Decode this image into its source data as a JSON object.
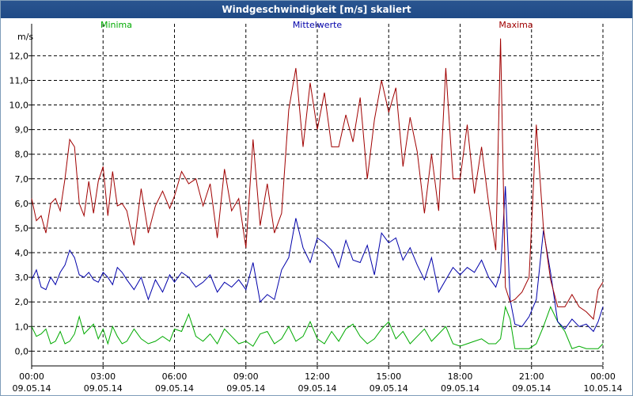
{
  "window": {
    "title": "Windgeschwindigkeit [m/s] skaliert"
  },
  "colors": {
    "minima": "#00aa00",
    "mittelwerte": "#0000aa",
    "maxima": "#a00000",
    "grid": "#000000",
    "title_bg": "#2a5590"
  },
  "chart_data": {
    "type": "line",
    "title": "Windgeschwindigkeit [m/s] skaliert",
    "ylabel": "m/s",
    "xlabel": "",
    "ylim": [
      -0.6,
      13.3
    ],
    "xlim": [
      0,
      24
    ],
    "yticks": [
      0.0,
      1.0,
      2.0,
      3.0,
      4.0,
      5.0,
      6.0,
      7.0,
      8.0,
      9.0,
      10.0,
      11.0,
      12.0
    ],
    "ytick_labels": [
      "0,0",
      "1,0",
      "2,0",
      "3,0",
      "4,0",
      "5,0",
      "6,0",
      "7,0",
      "8,0",
      "9,0",
      "10,0",
      "11,0",
      "12,0"
    ],
    "xticks": [
      {
        "hour": 0,
        "time": "00:00",
        "date": "09.05.14"
      },
      {
        "hour": 3,
        "time": "03:00",
        "date": "09.05.14"
      },
      {
        "hour": 6,
        "time": "06:00",
        "date": "09.05.14"
      },
      {
        "hour": 9,
        "time": "09:00",
        "date": "09.05.14"
      },
      {
        "hour": 12,
        "time": "12:00",
        "date": "09.05.14"
      },
      {
        "hour": 15,
        "time": "15:00",
        "date": "09.05.14"
      },
      {
        "hour": 18,
        "time": "18:00",
        "date": "09.05.14"
      },
      {
        "hour": 21,
        "time": "21:00",
        "date": "09.05.14"
      },
      {
        "hour": 24,
        "time": "00:00",
        "date": "10.05.14"
      }
    ],
    "grid": true,
    "legend_position": "top",
    "series": [
      {
        "name": "Minima",
        "key": "minima",
        "x": [
          0.0,
          0.2,
          0.4,
          0.6,
          0.8,
          1.0,
          1.2,
          1.4,
          1.6,
          1.8,
          2.0,
          2.2,
          2.4,
          2.6,
          2.8,
          3.0,
          3.2,
          3.4,
          3.6,
          3.8,
          4.0,
          4.3,
          4.6,
          4.9,
          5.2,
          5.5,
          5.8,
          6.0,
          6.3,
          6.6,
          6.9,
          7.2,
          7.5,
          7.8,
          8.1,
          8.4,
          8.7,
          9.0,
          9.3,
          9.6,
          9.9,
          10.2,
          10.5,
          10.8,
          11.1,
          11.4,
          11.7,
          12.0,
          12.3,
          12.6,
          12.9,
          13.2,
          13.5,
          13.8,
          14.1,
          14.4,
          14.7,
          15.0,
          15.3,
          15.6,
          15.9,
          16.2,
          16.5,
          16.8,
          17.1,
          17.4,
          17.7,
          18.0,
          18.3,
          18.6,
          18.9,
          19.2,
          19.5,
          19.7,
          19.9,
          20.1,
          20.3,
          20.6,
          20.9,
          21.2,
          21.5,
          21.8,
          22.1,
          22.4,
          22.7,
          23.0,
          23.3,
          23.6,
          23.8,
          24.0
        ],
        "y": [
          1.0,
          0.6,
          0.7,
          0.9,
          0.3,
          0.4,
          0.8,
          0.3,
          0.4,
          0.7,
          1.4,
          0.7,
          0.9,
          1.1,
          0.5,
          0.9,
          0.3,
          1.0,
          0.6,
          0.3,
          0.4,
          0.9,
          0.5,
          0.3,
          0.4,
          0.6,
          0.4,
          0.9,
          0.8,
          1.5,
          0.6,
          0.4,
          0.7,
          0.3,
          0.9,
          0.6,
          0.3,
          0.4,
          0.2,
          0.7,
          0.8,
          0.3,
          0.5,
          1.0,
          0.4,
          0.6,
          1.2,
          0.5,
          0.3,
          0.8,
          0.4,
          0.9,
          1.1,
          0.6,
          0.3,
          0.5,
          0.9,
          1.2,
          0.5,
          0.8,
          0.3,
          0.6,
          0.9,
          0.4,
          0.7,
          1.0,
          0.3,
          0.2,
          0.3,
          0.4,
          0.5,
          0.3,
          0.3,
          0.5,
          1.8,
          1.3,
          0.1,
          0.1,
          0.1,
          0.3,
          1.0,
          1.8,
          1.2,
          0.8,
          0.1,
          0.2,
          0.1,
          0.1,
          0.1,
          0.3
        ]
      },
      {
        "name": "Mittelwerte",
        "key": "mittelwerte",
        "x": [
          0.0,
          0.2,
          0.4,
          0.6,
          0.8,
          1.0,
          1.2,
          1.4,
          1.6,
          1.8,
          2.0,
          2.2,
          2.4,
          2.6,
          2.8,
          3.0,
          3.2,
          3.4,
          3.6,
          3.8,
          4.0,
          4.3,
          4.6,
          4.9,
          5.2,
          5.5,
          5.8,
          6.0,
          6.3,
          6.6,
          6.9,
          7.2,
          7.5,
          7.8,
          8.1,
          8.4,
          8.7,
          9.0,
          9.3,
          9.6,
          9.9,
          10.2,
          10.5,
          10.8,
          11.1,
          11.4,
          11.7,
          12.0,
          12.3,
          12.6,
          12.9,
          13.2,
          13.5,
          13.8,
          14.1,
          14.4,
          14.7,
          15.0,
          15.3,
          15.6,
          15.9,
          16.2,
          16.5,
          16.8,
          17.1,
          17.4,
          17.7,
          18.0,
          18.3,
          18.6,
          18.9,
          19.2,
          19.5,
          19.7,
          19.9,
          20.1,
          20.3,
          20.6,
          20.9,
          21.2,
          21.5,
          21.8,
          22.1,
          22.4,
          22.7,
          23.0,
          23.3,
          23.6,
          23.8,
          24.0
        ],
        "y": [
          2.9,
          3.3,
          2.6,
          2.5,
          3.0,
          2.7,
          3.2,
          3.5,
          4.1,
          3.8,
          3.1,
          3.0,
          3.2,
          2.9,
          2.8,
          3.2,
          3.0,
          2.7,
          3.4,
          3.2,
          2.9,
          2.5,
          3.0,
          2.1,
          2.9,
          2.4,
          3.1,
          2.8,
          3.2,
          3.0,
          2.6,
          2.8,
          3.1,
          2.4,
          2.8,
          2.6,
          2.9,
          2.5,
          3.6,
          2.0,
          2.3,
          2.1,
          3.3,
          3.8,
          5.4,
          4.2,
          3.6,
          4.6,
          4.4,
          4.1,
          3.4,
          4.5,
          3.7,
          3.6,
          4.3,
          3.1,
          4.8,
          4.4,
          4.6,
          3.7,
          4.2,
          3.5,
          2.9,
          3.8,
          2.4,
          2.9,
          3.4,
          3.1,
          3.4,
          3.2,
          3.7,
          3.0,
          2.6,
          3.2,
          6.7,
          2.1,
          1.1,
          1.0,
          1.4,
          2.1,
          4.9,
          3.2,
          1.2,
          0.9,
          1.3,
          1.0,
          1.1,
          0.8,
          1.2,
          1.8
        ]
      },
      {
        "name": "Maxima",
        "key": "maxima",
        "x": [
          0.0,
          0.2,
          0.4,
          0.6,
          0.8,
          1.0,
          1.2,
          1.4,
          1.6,
          1.8,
          2.0,
          2.2,
          2.4,
          2.6,
          2.8,
          3.0,
          3.2,
          3.4,
          3.6,
          3.8,
          4.0,
          4.3,
          4.6,
          4.9,
          5.2,
          5.5,
          5.8,
          6.0,
          6.3,
          6.6,
          6.9,
          7.2,
          7.5,
          7.8,
          8.1,
          8.4,
          8.7,
          9.0,
          9.3,
          9.6,
          9.9,
          10.2,
          10.5,
          10.8,
          11.1,
          11.4,
          11.7,
          12.0,
          12.3,
          12.6,
          12.9,
          13.2,
          13.5,
          13.8,
          14.1,
          14.4,
          14.7,
          15.0,
          15.3,
          15.6,
          15.9,
          16.2,
          16.5,
          16.8,
          17.1,
          17.4,
          17.7,
          18.0,
          18.3,
          18.6,
          18.9,
          19.2,
          19.5,
          19.7,
          19.9,
          20.1,
          20.3,
          20.6,
          20.9,
          21.2,
          21.5,
          21.8,
          22.1,
          22.4,
          22.7,
          23.0,
          23.3,
          23.6,
          23.8,
          24.0
        ],
        "y": [
          6.2,
          5.3,
          5.5,
          4.8,
          6.0,
          6.2,
          5.7,
          7.0,
          8.6,
          8.3,
          6.0,
          5.5,
          6.9,
          5.6,
          6.9,
          7.5,
          5.5,
          7.3,
          5.9,
          6.0,
          5.7,
          4.3,
          6.6,
          4.8,
          5.9,
          6.5,
          5.8,
          6.3,
          7.3,
          6.8,
          7.0,
          5.9,
          6.8,
          4.6,
          7.4,
          5.7,
          6.2,
          4.2,
          8.6,
          5.1,
          6.8,
          4.8,
          5.6,
          9.8,
          11.5,
          8.3,
          10.9,
          9.0,
          10.5,
          8.3,
          8.3,
          9.6,
          8.5,
          10.3,
          7.0,
          9.4,
          11.0,
          9.7,
          10.7,
          7.5,
          9.5,
          8.1,
          5.6,
          8.0,
          5.7,
          11.5,
          7.0,
          7.0,
          9.2,
          6.4,
          8.3,
          6.0,
          4.1,
          12.7,
          2.6,
          2.0,
          2.1,
          2.4,
          3.0,
          9.2,
          5.0,
          2.9,
          1.8,
          1.8,
          2.3,
          1.8,
          1.6,
          1.3,
          2.5,
          2.8
        ]
      }
    ]
  }
}
